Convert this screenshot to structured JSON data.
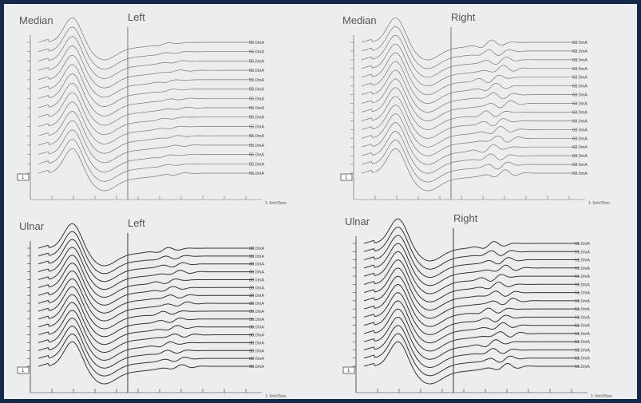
{
  "panels": [
    {
      "nerve": "Median",
      "side": "Left",
      "marker": "1",
      "scale": "1: 5mV/5ms",
      "intensities": [
        "55.0mA",
        "55.0mA",
        "55.0mA",
        "55.0mA",
        "55.0mA",
        "55.0mA",
        "55.0mA",
        "55.0mA",
        "55.0mA",
        "55.0mA",
        "55.0mA",
        "55.0mA",
        "55.0mA",
        "55.0mA",
        "55.0mA"
      ]
    },
    {
      "nerve": "Median",
      "side": "Right",
      "marker": "1",
      "scale": "1: 5mV/5ms",
      "intensities": [
        "63.0mA",
        "63.0mA",
        "63.0mA",
        "63.0mA",
        "63.0mA",
        "63.0mA",
        "63.0mA",
        "63.0mA",
        "63.0mA",
        "63.0mA",
        "63.0mA",
        "63.0mA",
        "63.0mA",
        "63.0mA",
        "63.0mA",
        "63.0mA"
      ]
    },
    {
      "nerve": "Ulnar",
      "side": "Left",
      "marker": "1",
      "scale": "1: 5mV/5ms",
      "intensities": [
        "38.0mA",
        "38.0mA",
        "38.0mA",
        "38.0mA",
        "38.0mA",
        "38.0mA",
        "38.0mA",
        "38.0mA",
        "38.0mA",
        "38.0mA",
        "38.0mA",
        "38.0mA",
        "38.0mA",
        "38.0mA",
        "38.0mA",
        "38.0mA"
      ]
    },
    {
      "nerve": "Ulnar",
      "side": "Right",
      "marker": "1",
      "scale": "1: 5mV/5ms",
      "intensities": [
        "51.0mA",
        "51.0mA",
        "51.0mA",
        "51.0mA",
        "51.0mA",
        "51.0mA",
        "51.0mA",
        "51.0mA",
        "51.0mA",
        "51.0mA",
        "51.0mA",
        "51.0mA",
        "51.0mA",
        "51.0mA",
        "51.0mA",
        "51.0mA"
      ]
    }
  ]
}
